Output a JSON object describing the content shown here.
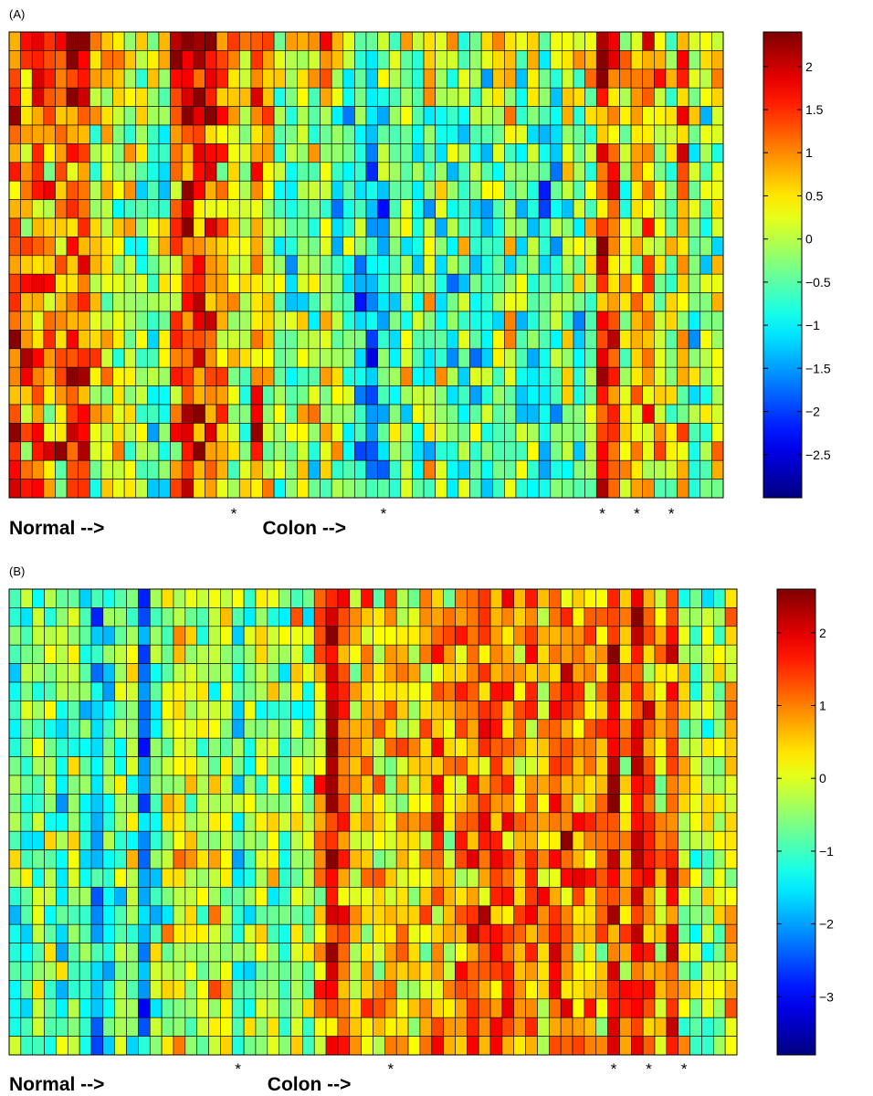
{
  "chart_data": [
    {
      "type": "heatmap",
      "panel_label": "(A)",
      "rows": 25,
      "cols": 62,
      "x_labels": [
        {
          "text": "Normal -->",
          "col": 0
        },
        {
          "text": "Colon -->",
          "col": 22
        }
      ],
      "star_columns": [
        19,
        32,
        51,
        54,
        57
      ],
      "colorbar": {
        "min": -3.0,
        "max": 2.4,
        "ticks": [
          2,
          1.5,
          1,
          0.5,
          0,
          -0.5,
          -1,
          -1.5,
          -2,
          -2.5
        ],
        "tick_labels": [
          "2",
          "1.5",
          "1",
          "0.5",
          "0",
          "−0.5",
          "−1",
          "−1.5",
          "−2",
          "−2.5"
        ]
      },
      "column_profile": [
        1.2,
        0.9,
        1.1,
        0.8,
        0.9,
        1.4,
        1.3,
        0.4,
        0.2,
        0.3,
        0.0,
        -0.3,
        -0.5,
        -0.2,
        1.0,
        1.5,
        1.6,
        1.4,
        0.7,
        0.2,
        -0.1,
        1.0,
        0.3,
        -0.1,
        -0.4,
        0.2,
        -0.2,
        0.5,
        -0.3,
        -0.6,
        -0.9,
        -1.1,
        -0.8,
        -0.5,
        -0.3,
        -0.6,
        -0.2,
        -0.4,
        -0.7,
        -0.5,
        -0.4,
        -0.8,
        -0.3,
        -0.1,
        -0.6,
        -0.4,
        -0.9,
        -0.5,
        -0.2,
        -0.4,
        -0.1,
        1.5,
        1.1,
        0.1,
        0.5,
        0.8,
        0.3,
        0.0,
        0.7,
        -0.2,
        -0.3,
        0.2
      ],
      "row_profile": [
        0.6,
        0.5,
        0.3,
        0.2,
        0.1,
        0.0,
        0.0,
        -0.1,
        -0.1,
        -0.2,
        -0.1,
        0.0,
        -0.2,
        0.1,
        0.0,
        -0.1,
        0.1,
        0.0,
        0.1,
        -0.2,
        0.0,
        0.1,
        0.0,
        -0.1,
        -0.1
      ]
    },
    {
      "type": "heatmap",
      "panel_label": "(B)",
      "rows": 25,
      "cols": 62,
      "x_labels": [
        {
          "text": "Normal -->",
          "col": 0
        },
        {
          "text": "Colon -->",
          "col": 22
        }
      ],
      "star_columns": [
        19,
        32,
        51,
        54,
        57
      ],
      "colorbar": {
        "min": -3.8,
        "max": 2.6,
        "ticks": [
          2,
          1,
          0,
          -1,
          -2,
          -3
        ],
        "tick_labels": [
          "2",
          "1",
          "0",
          "−1",
          "−2",
          "−3"
        ]
      },
      "column_profile": [
        -0.8,
        -0.9,
        -0.7,
        -0.4,
        -0.9,
        -0.6,
        -1.0,
        -1.6,
        -1.0,
        -0.5,
        -0.8,
        -2.4,
        -0.7,
        -0.5,
        0.1,
        0.0,
        -0.4,
        -0.2,
        -0.2,
        -0.9,
        -0.6,
        -0.3,
        -0.3,
        -0.9,
        -0.1,
        -0.6,
        0.6,
        1.7,
        1.1,
        0.3,
        0.6,
        0.2,
        0.5,
        0.6,
        0.2,
        0.7,
        0.9,
        0.4,
        0.9,
        1.1,
        1.2,
        1.1,
        1.0,
        0.8,
        0.9,
        0.6,
        1.1,
        1.0,
        0.9,
        0.8,
        0.6,
        1.6,
        0.4,
        1.8,
        1.0,
        0.4,
        1.3,
        0.0,
        -0.2,
        -0.5,
        -0.1,
        0.4
      ],
      "row_profile": [
        0.0,
        0.0,
        0.1,
        0.0,
        -0.1,
        0.1,
        0.0,
        0.0,
        -0.1,
        0.0,
        0.1,
        -0.1,
        0.2,
        0.0,
        0.1,
        -0.1,
        0.0,
        0.1,
        0.0,
        -0.1,
        0.0,
        0.0,
        0.1,
        -0.1,
        0.0
      ]
    }
  ]
}
